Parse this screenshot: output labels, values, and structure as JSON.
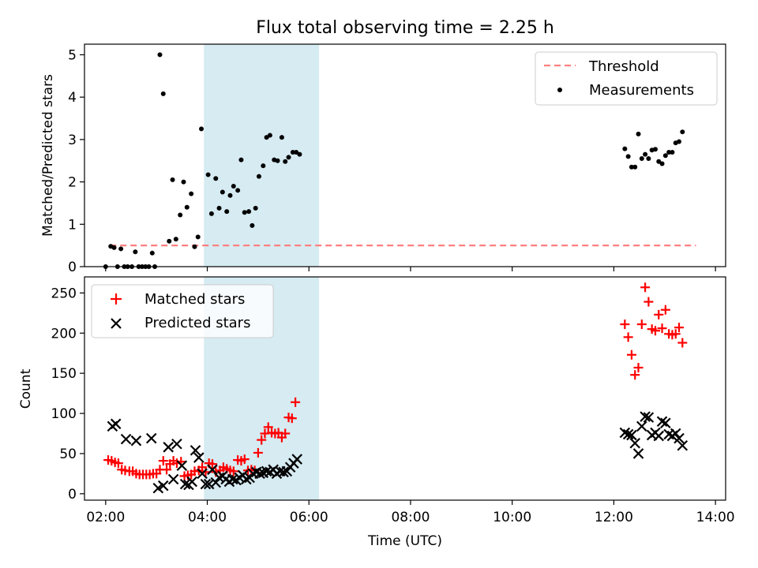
{
  "title": "Flux total observing time = 2.25 h",
  "colors": {
    "threshold": "#ff7f7f",
    "measurement": "#000000",
    "matched": "#ff0000",
    "predicted": "#000000",
    "highlight": "#add8e6"
  },
  "chart_data": [
    {
      "type": "scatter",
      "ylabel": "Matched/Predicted stars",
      "xlim": [
        "01:35",
        "14:12"
      ],
      "ylim": [
        0,
        5.25
      ],
      "yticks": [
        0,
        1,
        2,
        3,
        4,
        5
      ],
      "highlight_span": [
        "03:56",
        "06:12"
      ],
      "legend": {
        "placement": "upper right",
        "entries": [
          "Threshold",
          "Measurements"
        ]
      },
      "threshold": {
        "name": "Threshold",
        "y": 0.5,
        "x_range": [
          "02:05",
          "13:37"
        ]
      },
      "series": [
        {
          "name": "Measurements",
          "points": [
            [
              "02:00",
              0
            ],
            [
              "02:06",
              0.48
            ],
            [
              "02:10",
              0.45
            ],
            [
              "02:14",
              0
            ],
            [
              "02:18",
              0.42
            ],
            [
              "02:22",
              0
            ],
            [
              "02:26",
              0
            ],
            [
              "02:31",
              0
            ],
            [
              "02:35",
              0.35
            ],
            [
              "02:39",
              0
            ],
            [
              "02:43",
              0
            ],
            [
              "02:47",
              0
            ],
            [
              "02:51",
              0
            ],
            [
              "02:55",
              0.32
            ],
            [
              "02:58",
              0
            ],
            [
              "03:04",
              5.0
            ],
            [
              "03:08",
              4.08
            ],
            [
              "03:15",
              0.6
            ],
            [
              "03:19",
              2.05
            ],
            [
              "03:23",
              0.65
            ],
            [
              "03:28",
              1.22
            ],
            [
              "03:32",
              2.0
            ],
            [
              "03:36",
              1.4
            ],
            [
              "03:41",
              1.72
            ],
            [
              "03:45",
              0.47
            ],
            [
              "03:49",
              0.7
            ],
            [
              "03:53",
              3.25
            ],
            [
              "04:01",
              2.17
            ],
            [
              "04:05",
              1.25
            ],
            [
              "04:10",
              2.08
            ],
            [
              "04:14",
              1.38
            ],
            [
              "04:18",
              1.76
            ],
            [
              "04:23",
              1.3
            ],
            [
              "04:27",
              1.68
            ],
            [
              "04:31",
              1.9
            ],
            [
              "04:36",
              1.8
            ],
            [
              "04:40",
              2.52
            ],
            [
              "04:44",
              1.28
            ],
            [
              "04:49",
              1.3
            ],
            [
              "04:53",
              0.97
            ],
            [
              "04:57",
              1.38
            ],
            [
              "05:01",
              2.13
            ],
            [
              "05:06",
              2.38
            ],
            [
              "05:10",
              3.05
            ],
            [
              "05:14",
              3.1
            ],
            [
              "05:19",
              2.52
            ],
            [
              "05:23",
              2.5
            ],
            [
              "05:28",
              3.05
            ],
            [
              "05:32",
              2.48
            ],
            [
              "05:36",
              2.58
            ],
            [
              "05:41",
              2.7
            ],
            [
              "05:45",
              2.7
            ],
            [
              "05:49",
              2.65
            ],
            [
              "12:13",
              2.78
            ],
            [
              "12:17",
              2.6
            ],
            [
              "12:21",
              2.35
            ],
            [
              "12:25",
              2.35
            ],
            [
              "12:29",
              3.13
            ],
            [
              "12:33",
              2.55
            ],
            [
              "12:37",
              2.65
            ],
            [
              "12:41",
              2.55
            ],
            [
              "12:45",
              2.75
            ],
            [
              "12:49",
              2.77
            ],
            [
              "12:53",
              2.48
            ],
            [
              "12:57",
              2.43
            ],
            [
              "13:01",
              2.62
            ],
            [
              "13:05",
              2.7
            ],
            [
              "13:09",
              2.7
            ],
            [
              "13:13",
              2.92
            ],
            [
              "13:17",
              2.95
            ],
            [
              "13:21",
              3.18
            ]
          ]
        }
      ]
    },
    {
      "type": "scatter",
      "xlabel": "Time (UTC)",
      "ylabel": "Count",
      "xlim": [
        "01:35",
        "14:12"
      ],
      "ylim": [
        -8,
        270
      ],
      "xticks": [
        "02:00",
        "04:00",
        "06:00",
        "08:00",
        "10:00",
        "12:00",
        "14:00"
      ],
      "yticks": [
        0,
        50,
        100,
        150,
        200,
        250
      ],
      "highlight_span": [
        "03:56",
        "06:12"
      ],
      "legend": {
        "placement": "upper left",
        "entries": [
          "Matched stars",
          "Predicted stars"
        ]
      },
      "series": [
        {
          "name": "Matched stars",
          "marker": "plus",
          "points": [
            [
              "02:03",
              42
            ],
            [
              "02:07",
              41
            ],
            [
              "02:11",
              39
            ],
            [
              "02:15",
              38
            ],
            [
              "02:19",
              30
            ],
            [
              "02:23",
              29
            ],
            [
              "02:28",
              28
            ],
            [
              "02:32",
              28
            ],
            [
              "02:36",
              25
            ],
            [
              "02:40",
              24
            ],
            [
              "02:44",
              24
            ],
            [
              "02:48",
              24
            ],
            [
              "02:52",
              24
            ],
            [
              "02:56",
              25
            ],
            [
              "03:00",
              25
            ],
            [
              "03:04",
              30
            ],
            [
              "03:08",
              41
            ],
            [
              "03:12",
              30
            ],
            [
              "03:16",
              37
            ],
            [
              "03:20",
              41
            ],
            [
              "03:24",
              38
            ],
            [
              "03:29",
              40
            ],
            [
              "03:33",
              22
            ],
            [
              "03:37",
              23
            ],
            [
              "03:41",
              24
            ],
            [
              "03:45",
              28
            ],
            [
              "03:50",
              29
            ],
            [
              "03:54",
              33
            ],
            [
              "03:58",
              27
            ],
            [
              "04:02",
              38
            ],
            [
              "04:06",
              37
            ],
            [
              "04:10",
              27
            ],
            [
              "04:15",
              29
            ],
            [
              "04:19",
              33
            ],
            [
              "04:23",
              31
            ],
            [
              "04:27",
              29
            ],
            [
              "04:31",
              28
            ],
            [
              "04:36",
              42
            ],
            [
              "04:40",
              41
            ],
            [
              "04:44",
              43
            ],
            [
              "04:48",
              29
            ],
            [
              "04:52",
              30
            ],
            [
              "04:56",
              29
            ],
            [
              "05:00",
              51
            ],
            [
              "05:04",
              67
            ],
            [
              "05:08",
              75
            ],
            [
              "05:12",
              83
            ],
            [
              "05:16",
              76
            ],
            [
              "05:20",
              75
            ],
            [
              "05:24",
              76
            ],
            [
              "05:28",
              70
            ],
            [
              "05:32",
              75
            ],
            [
              "05:36",
              95
            ],
            [
              "05:40",
              94
            ],
            [
              "05:44",
              114
            ],
            [
              "12:13",
              211
            ],
            [
              "12:17",
              195
            ],
            [
              "12:21",
              173
            ],
            [
              "12:25",
              148
            ],
            [
              "12:29",
              157
            ],
            [
              "12:33",
              211
            ],
            [
              "12:37",
              257
            ],
            [
              "12:41",
              239
            ],
            [
              "12:45",
              205
            ],
            [
              "12:49",
              203
            ],
            [
              "12:53",
              223
            ],
            [
              "12:57",
              206
            ],
            [
              "13:01",
              229
            ],
            [
              "13:05",
              199
            ],
            [
              "13:09",
              198
            ],
            [
              "13:13",
              199
            ],
            [
              "13:17",
              207
            ],
            [
              "13:21",
              188
            ]
          ]
        },
        {
          "name": "Predicted stars",
          "marker": "x",
          "points": [
            [
              "02:08",
              84
            ],
            [
              "02:12",
              87
            ],
            [
              "02:24",
              68
            ],
            [
              "02:36",
              66
            ],
            [
              "02:54",
              69
            ],
            [
              "03:02",
              7
            ],
            [
              "03:08",
              10
            ],
            [
              "03:14",
              58
            ],
            [
              "03:20",
              18
            ],
            [
              "03:24",
              62
            ],
            [
              "03:30",
              35
            ],
            [
              "03:34",
              12
            ],
            [
              "03:38",
              11
            ],
            [
              "03:42",
              15
            ],
            [
              "03:46",
              54
            ],
            [
              "03:50",
              45
            ],
            [
              "03:54",
              25
            ],
            [
              "03:58",
              12
            ],
            [
              "04:02",
              12
            ],
            [
              "04:06",
              30
            ],
            [
              "04:10",
              14
            ],
            [
              "04:14",
              20
            ],
            [
              "04:18",
              22
            ],
            [
              "04:22",
              18
            ],
            [
              "04:26",
              15
            ],
            [
              "04:30",
              18
            ],
            [
              "04:34",
              17
            ],
            [
              "04:38",
              20
            ],
            [
              "04:42",
              23
            ],
            [
              "04:46",
              18
            ],
            [
              "04:50",
              20
            ],
            [
              "04:54",
              25
            ],
            [
              "04:58",
              27
            ],
            [
              "05:02",
              25
            ],
            [
              "05:06",
              26
            ],
            [
              "05:10",
              28
            ],
            [
              "05:14",
              27
            ],
            [
              "05:18",
              30
            ],
            [
              "05:22",
              25
            ],
            [
              "05:26",
              28
            ],
            [
              "05:30",
              27
            ],
            [
              "05:34",
              28
            ],
            [
              "05:38",
              33
            ],
            [
              "05:42",
              38
            ],
            [
              "05:46",
              43
            ],
            [
              "12:13",
              76
            ],
            [
              "12:17",
              74
            ],
            [
              "12:21",
              73
            ],
            [
              "12:25",
              63
            ],
            [
              "12:29",
              50
            ],
            [
              "12:33",
              84
            ],
            [
              "12:37",
              96
            ],
            [
              "12:41",
              95
            ],
            [
              "12:45",
              73
            ],
            [
              "12:49",
              76
            ],
            [
              "12:53",
              72
            ],
            [
              "12:57",
              90
            ],
            [
              "13:01",
              88
            ],
            [
              "13:05",
              74
            ],
            [
              "13:09",
              72
            ],
            [
              "13:13",
              75
            ],
            [
              "13:17",
              69
            ],
            [
              "13:21",
              60
            ]
          ]
        }
      ]
    }
  ]
}
